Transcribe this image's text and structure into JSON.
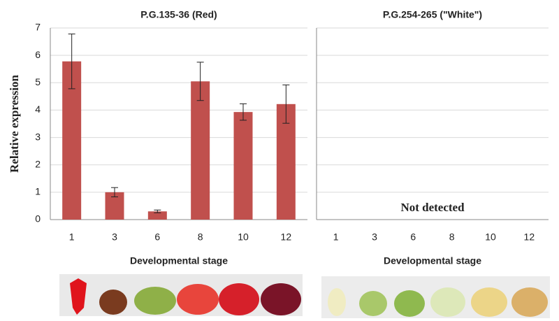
{
  "chart_data": [
    {
      "type": "bar",
      "title": "P.G.135-36 (Red)",
      "x_label": "Developmental stage",
      "y_label": "Relative expression",
      "categories": [
        "1",
        "3",
        "6",
        "8",
        "10",
        "12"
      ],
      "values": [
        5.78,
        1.0,
        0.3,
        5.05,
        3.93,
        4.22
      ],
      "errors": [
        1.0,
        0.17,
        0.05,
        0.7,
        0.3,
        0.7
      ],
      "color": "#c0504d",
      "ylim": [
        0,
        7
      ],
      "yticks": [
        0,
        1,
        2,
        3,
        4,
        5,
        6,
        7
      ],
      "grid": true,
      "tick_labels": true
    },
    {
      "type": "bar",
      "title": "P.G.254-265 (\"White\")",
      "x_label": "Developmental stage",
      "annotation": "Not detected",
      "categories": [
        "1",
        "3",
        "6",
        "8",
        "10",
        "12"
      ],
      "ylim": [
        0,
        7
      ],
      "yticks": [
        0,
        1,
        2,
        3,
        4,
        5,
        6,
        7
      ],
      "grid": true,
      "tick_labels": false
    }
  ]
}
